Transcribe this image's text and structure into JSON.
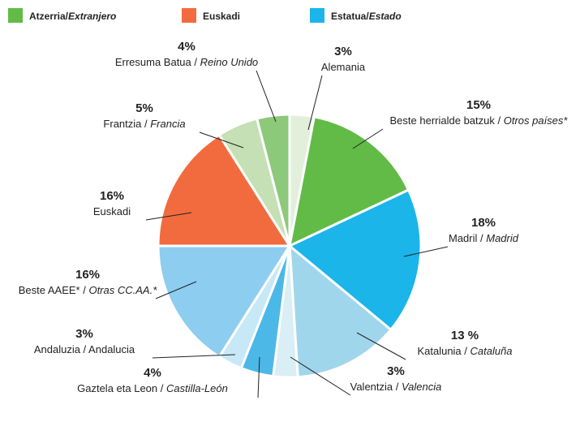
{
  "chart_data": {
    "type": "pie",
    "legend": [
      {
        "label": [
          "Atzerria/",
          "Extranjero"
        ],
        "color": "#62bb46"
      },
      {
        "label": [
          "Euskadi"
        ],
        "color": "#f26b3f"
      },
      {
        "label": [
          "Estatua/",
          "Estado"
        ],
        "color": "#1bb5ea"
      }
    ],
    "slices": [
      {
        "label": [
          "Alemania"
        ],
        "value": 3,
        "value_label": "3%",
        "color": "#e2efda"
      },
      {
        "label": [
          "Beste herrialde batzuk / ",
          "Otros países*"
        ],
        "value": 15,
        "value_label": "15%",
        "color": "#62bb46"
      },
      {
        "label": [
          "Madril / ",
          "Madrid"
        ],
        "value": 18,
        "value_label": "18%",
        "color": "#1bb5ea"
      },
      {
        "label": [
          "Katalunia / ",
          "Cataluña"
        ],
        "value": 13,
        "value_label": "13 %",
        "color": "#a0d6ec"
      },
      {
        "label": [
          "Valentzia / ",
          "Valencia"
        ],
        "value": 3,
        "value_label": "3%",
        "color": "#d9eef5"
      },
      {
        "label": [
          "Gaztela eta Leon / ",
          "Castilla-León"
        ],
        "value": 4,
        "value_label": "4%",
        "color": "#4cb8e8"
      },
      {
        "label": [
          "Andaluzia / Andalucia"
        ],
        "value": 3,
        "value_label": "3%",
        "color": "#c7e8f6"
      },
      {
        "label": [
          "Beste AAEE* / ",
          "Otras CC.AA.*"
        ],
        "value": 16,
        "value_label": "16%",
        "color": "#8dcdf0"
      },
      {
        "label": [
          "Euskadi"
        ],
        "value": 16,
        "value_label": "16%",
        "color": "#f26b3f"
      },
      {
        "label": [
          "Frantzia / ",
          "Francia"
        ],
        "value": 5,
        "value_label": "5%",
        "color": "#c5e0b4"
      },
      {
        "label": [
          "Erresuma Batua / ",
          "Reino Unido"
        ],
        "value": 4,
        "value_label": "4%",
        "color": "#8cc97a"
      }
    ]
  }
}
